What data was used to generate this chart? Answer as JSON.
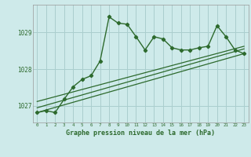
{
  "title": "Graphe pression niveau de la mer (hPa)",
  "bg_color": "#ceeaea",
  "grid_color": "#aacece",
  "line_color": "#2d6a2d",
  "x_ticks": [
    0,
    1,
    2,
    3,
    4,
    5,
    6,
    7,
    8,
    9,
    10,
    11,
    12,
    13,
    14,
    15,
    16,
    17,
    18,
    19,
    20,
    21,
    22,
    23
  ],
  "y_ticks": [
    1027,
    1028,
    1029
  ],
  "ylim": [
    1026.55,
    1029.75
  ],
  "xlim": [
    -0.5,
    23.5
  ],
  "main_x": [
    0,
    1,
    2,
    3,
    4,
    5,
    6,
    7,
    8,
    9,
    10,
    11,
    12,
    13,
    14,
    15,
    16,
    17,
    18,
    19,
    20,
    21,
    22,
    23
  ],
  "main_y": [
    1026.82,
    1026.87,
    1026.82,
    1027.18,
    1027.52,
    1027.72,
    1027.82,
    1028.22,
    1029.42,
    1029.25,
    1029.22,
    1028.88,
    1028.52,
    1028.88,
    1028.82,
    1028.58,
    1028.52,
    1028.52,
    1028.58,
    1028.62,
    1029.18,
    1028.88,
    1028.52,
    1028.42
  ],
  "trend1_x": [
    0,
    23
  ],
  "trend1_y": [
    1026.82,
    1028.42
  ],
  "trend2_x": [
    0,
    23
  ],
  "trend2_y": [
    1026.95,
    1028.55
  ],
  "trend3_x": [
    0,
    23
  ],
  "trend3_y": [
    1027.12,
    1028.62
  ]
}
